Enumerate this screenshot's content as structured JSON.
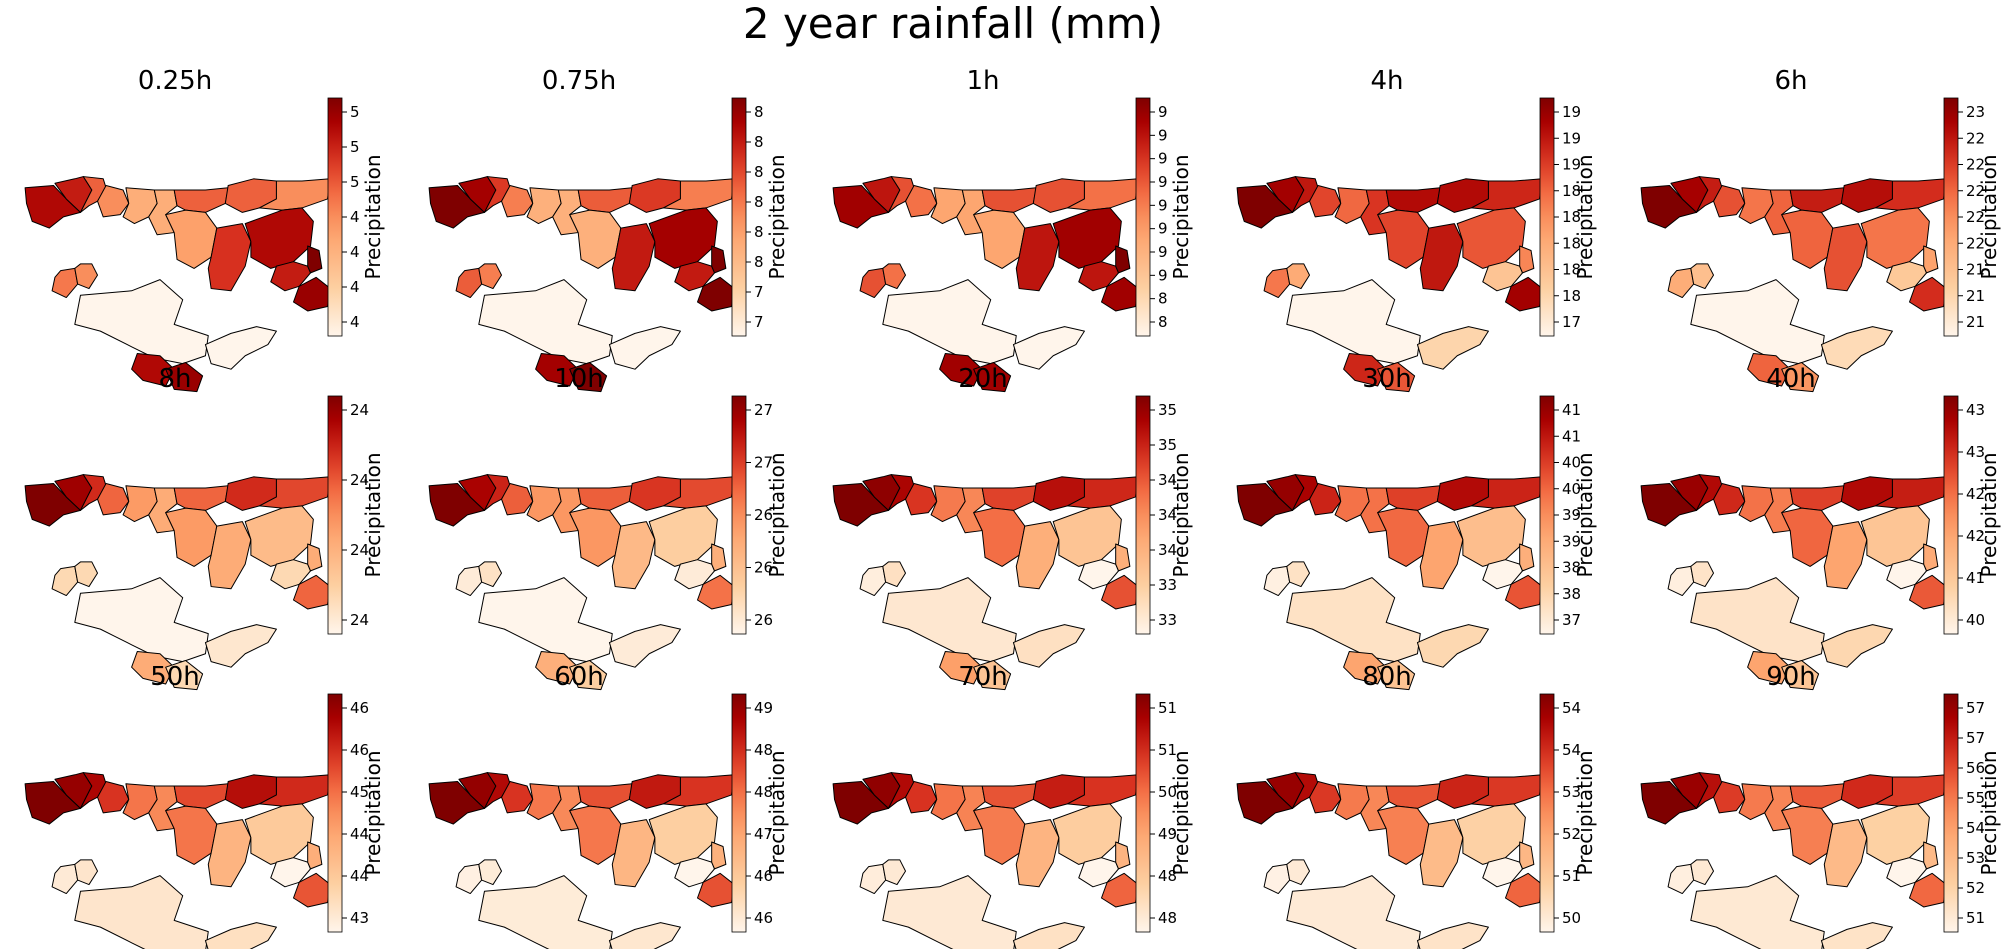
{
  "figure": {
    "title": "2 year rainfall (mm)"
  },
  "colormap": {
    "low": "#fff5eb",
    "mid": "#f7894e",
    "high": "#7f0000",
    "edge": "#000000"
  },
  "chart_data": [
    {
      "type": "heatmap",
      "title": "0.25h",
      "colorbar_label": "Precipitation",
      "colorbar_ticks": [
        "4",
        "4",
        "4",
        "4",
        "5",
        "5",
        "5"
      ],
      "values": [
        4.9,
        4.8,
        4.5,
        4.3,
        4.1,
        4.1,
        4.5,
        4.5,
        4.3,
        4.2,
        4.7,
        4.9,
        3.5,
        3.5,
        4.4,
        4.3,
        4.8,
        5.1,
        5.0,
        4.9,
        5.0
      ]
    },
    {
      "type": "heatmap",
      "title": "0.75h",
      "colorbar_label": "Precipitation",
      "colorbar_ticks": [
        "7",
        "7",
        "8",
        "8",
        "8",
        "8",
        "8",
        "8"
      ],
      "values": [
        7.9,
        7.8,
        7.6,
        7.4,
        7.2,
        7.2,
        7.5,
        7.6,
        7.4,
        7.2,
        7.7,
        7.8,
        6.8,
        6.8,
        7.5,
        7.4,
        7.7,
        7.9,
        7.9,
        7.8,
        7.9
      ]
    },
    {
      "type": "heatmap",
      "title": "1h",
      "colorbar_label": "Precipitation",
      "colorbar_ticks": [
        "8",
        "8",
        "9",
        "9",
        "9",
        "9",
        "9",
        "9",
        "9",
        "9"
      ],
      "values": [
        8.9,
        8.8,
        8.6,
        8.5,
        8.3,
        8.3,
        8.6,
        8.6,
        8.5,
        8.3,
        8.8,
        8.9,
        7.8,
        7.8,
        8.6,
        8.5,
        8.8,
        9.0,
        8.9,
        8.9,
        8.9
      ]
    },
    {
      "type": "heatmap",
      "title": "4h",
      "colorbar_label": "Precipitation",
      "colorbar_ticks": [
        "17",
        "18",
        "18",
        "18",
        "18",
        "18",
        "19",
        "19",
        "19"
      ],
      "values": [
        19.3,
        19.1,
        18.9,
        18.6,
        18.4,
        18.7,
        19.0,
        19.0,
        18.8,
        18.6,
        18.9,
        18.5,
        17.0,
        17.4,
        18.3,
        17.9,
        17.6,
        18.2,
        19.1,
        18.8,
        18.5
      ]
    },
    {
      "type": "heatmap",
      "title": "6h",
      "colorbar_label": "Precipitation",
      "colorbar_ticks": [
        "21",
        "21",
        "21",
        "22",
        "22",
        "22",
        "22",
        "22",
        "23"
      ],
      "values": [
        23.1,
        22.9,
        22.7,
        22.4,
        22.2,
        22.3,
        22.7,
        22.8,
        22.6,
        22.3,
        22.4,
        22.2,
        21.0,
        21.3,
        21.8,
        21.6,
        21.5,
        21.9,
        22.6,
        22.3,
        22.0
      ]
    },
    {
      "type": "heatmap",
      "title": "8h",
      "colorbar_label": "Precipitation",
      "colorbar_ticks": [
        "24",
        "24",
        "24",
        "24"
      ],
      "values": [
        24.9,
        24.8,
        24.6,
        24.4,
        24.2,
        24.1,
        24.4,
        24.6,
        24.5,
        24.2,
        24.1,
        24.0,
        23.6,
        23.7,
        23.8,
        23.8,
        23.8,
        24.1,
        24.4,
        24.1,
        23.8
      ]
    },
    {
      "type": "heatmap",
      "title": "10h",
      "colorbar_label": "Precipitation",
      "colorbar_ticks": [
        "26",
        "26",
        "26",
        "27",
        "27"
      ],
      "values": [
        27.5,
        27.3,
        27.1,
        26.8,
        26.5,
        26.5,
        26.8,
        27.0,
        26.9,
        26.5,
        26.2,
        26.0,
        25.6,
        25.7,
        25.7,
        25.8,
        25.7,
        26.3,
        26.7,
        26.3,
        26.0
      ]
    },
    {
      "type": "heatmap",
      "title": "20h",
      "colorbar_label": "Precipitation",
      "colorbar_ticks": [
        "33",
        "33",
        "34",
        "34",
        "34",
        "35",
        "35"
      ],
      "values": [
        35.4,
        35.3,
        35.1,
        34.7,
        34.2,
        34.1,
        34.6,
        35.0,
        34.8,
        34.3,
        33.7,
        33.4,
        32.9,
        33.0,
        32.8,
        33.0,
        32.7,
        33.7,
        34.5,
        33.9,
        33.4
      ]
    },
    {
      "type": "heatmap",
      "title": "30h",
      "colorbar_label": "Precipitation",
      "colorbar_ticks": [
        "37",
        "38",
        "38",
        "39",
        "39",
        "40",
        "40",
        "41",
        "41"
      ],
      "values": [
        41.0,
        40.8,
        40.6,
        40.2,
        39.4,
        39.4,
        39.9,
        40.5,
        40.2,
        39.5,
        38.8,
        38.3,
        37.6,
        37.8,
        37.3,
        37.6,
        37.2,
        38.6,
        39.7,
        38.8,
        38.2
      ]
    },
    {
      "type": "heatmap",
      "title": "40h",
      "colorbar_label": "Precipitation",
      "colorbar_ticks": [
        "40",
        "41",
        "42",
        "42",
        "43",
        "43"
      ],
      "values": [
        43.1,
        42.9,
        42.7,
        42.4,
        41.8,
        41.7,
        42.2,
        42.7,
        42.5,
        41.9,
        41.3,
        40.8,
        40.3,
        40.5,
        40.1,
        40.3,
        40.0,
        41.2,
        42.0,
        41.3,
        40.8
      ]
    },
    {
      "type": "heatmap",
      "title": "50h",
      "colorbar_label": "Precipitation",
      "colorbar_ticks": [
        "43",
        "44",
        "44",
        "45",
        "46",
        "46"
      ],
      "values": [
        46.3,
        46.1,
        45.9,
        45.4,
        44.8,
        44.6,
        45.2,
        45.8,
        45.5,
        44.8,
        44.0,
        43.6,
        43.1,
        43.2,
        43.0,
        43.1,
        42.8,
        44.1,
        45.1,
        44.2,
        43.6
      ]
    },
    {
      "type": "heatmap",
      "title": "60h",
      "colorbar_label": "Precipitation",
      "colorbar_ticks": [
        "46",
        "46",
        "47",
        "48",
        "48",
        "49"
      ],
      "values": [
        49.1,
        48.9,
        48.6,
        48.1,
        47.4,
        47.2,
        47.8,
        48.4,
        48.1,
        47.4,
        46.5,
        46.0,
        45.4,
        45.5,
        45.3,
        45.4,
        45.2,
        46.6,
        47.8,
        46.8,
        46.1
      ]
    },
    {
      "type": "heatmap",
      "title": "70h",
      "colorbar_label": "Precipitation",
      "colorbar_ticks": [
        "48",
        "48",
        "49",
        "50",
        "51",
        "51"
      ],
      "values": [
        51.8,
        51.6,
        51.2,
        50.6,
        49.8,
        49.6,
        50.2,
        50.9,
        50.6,
        49.7,
        48.7,
        48.1,
        47.4,
        47.6,
        47.3,
        47.4,
        47.1,
        48.7,
        50.0,
        48.9,
        48.1
      ]
    },
    {
      "type": "heatmap",
      "title": "80h",
      "colorbar_label": "Precipitation",
      "colorbar_ticks": [
        "50",
        "51",
        "52",
        "53",
        "54",
        "54"
      ],
      "values": [
        54.4,
        54.1,
        53.7,
        53.0,
        52.1,
        51.9,
        52.6,
        53.3,
        53.0,
        52.0,
        50.8,
        50.2,
        49.5,
        49.7,
        49.3,
        49.5,
        49.2,
        50.9,
        52.4,
        51.1,
        50.2
      ]
    },
    {
      "type": "heatmap",
      "title": "90h",
      "colorbar_label": "Precipitation",
      "colorbar_ticks": [
        "51",
        "52",
        "53",
        "54",
        "55",
        "56",
        "57",
        "57"
      ],
      "values": [
        57.5,
        57.1,
        56.6,
        55.8,
        54.8,
        54.6,
        55.3,
        56.1,
        55.8,
        54.7,
        53.3,
        52.6,
        51.8,
        52.0,
        51.6,
        51.8,
        51.4,
        53.3,
        55.1,
        53.6,
        52.6
      ]
    }
  ]
}
